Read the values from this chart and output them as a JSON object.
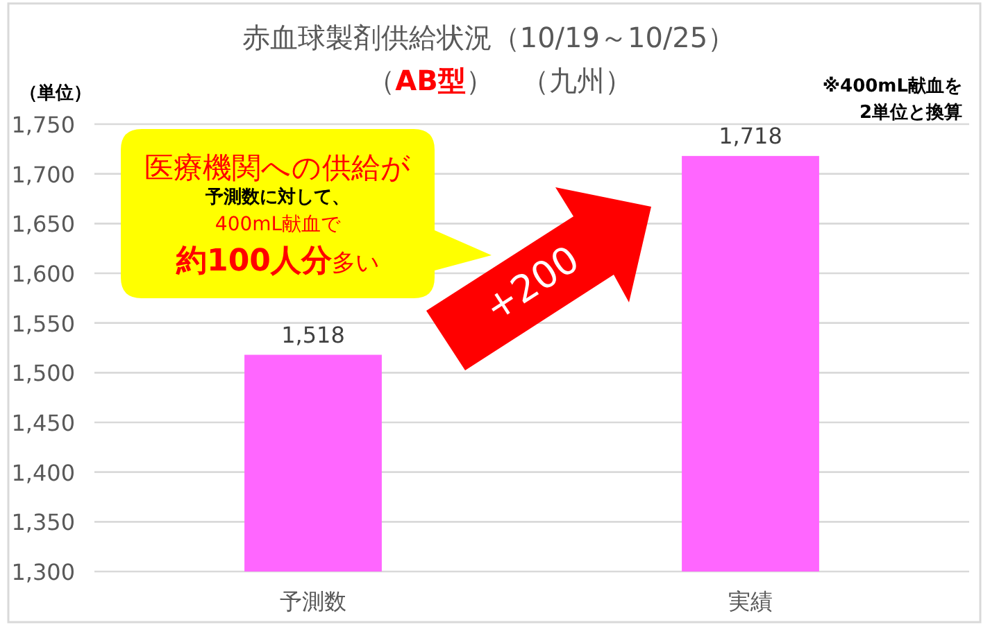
{
  "chart_data": {
    "type": "bar",
    "title": "赤血球製剤供給状況（10/19～10/25）",
    "subtitle": "（**AB型**）　（九州）",
    "ylabel": "（単位）",
    "categories": [
      "予測数",
      "実績"
    ],
    "values": [
      1518,
      1718
    ],
    "color": "#ff66ff",
    "value_labels": [
      "1,518",
      "1,718"
    ],
    "ylim": [
      1300,
      1750
    ],
    "yticks": [
      {
        "value": 1300,
        "label": "1,300"
      },
      {
        "value": 1350,
        "label": "1,350"
      },
      {
        "value": 1400,
        "label": "1,400"
      },
      {
        "value": 1450,
        "label": "1,450"
      },
      {
        "value": 1500,
        "label": "1,500"
      },
      {
        "value": 1550,
        "label": "1,550"
      },
      {
        "value": 1600,
        "label": "1,600"
      },
      {
        "value": 1650,
        "label": "1,650"
      },
      {
        "value": 1700,
        "label": "1,700"
      },
      {
        "value": 1750,
        "label": "1,750"
      }
    ],
    "grid": "y",
    "annotations": [
      "医療機関への供給が",
      "予測数に対して、",
      "400mL献血で",
      "**約100人分**多い",
      "+200",
      "※400mL献血を",
      "2単位と換算"
    ]
  }
}
